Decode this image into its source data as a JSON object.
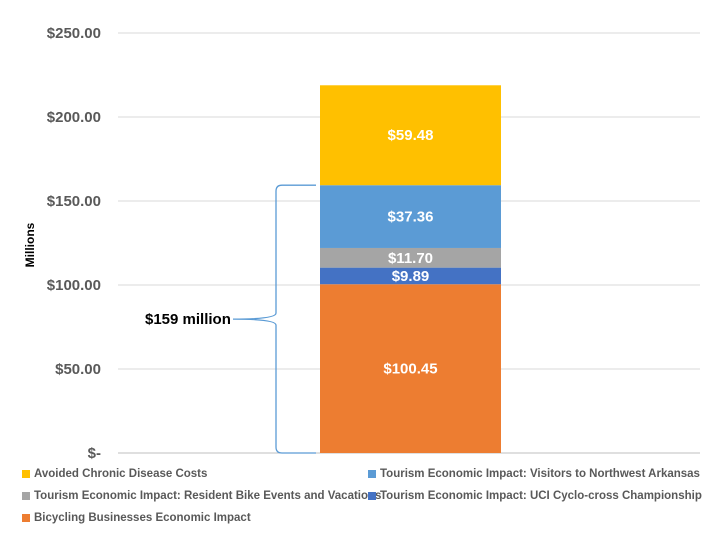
{
  "chart_data": {
    "type": "bar",
    "stacked": true,
    "title": "",
    "xlabel": "",
    "ylabel": "Millions",
    "ylim": [
      0,
      250
    ],
    "yticks": [
      0,
      50,
      100,
      150,
      200,
      250
    ],
    "ytick_labels": [
      "$-",
      "$50.00",
      "$100.00",
      "$150.00",
      "$200.00",
      "$250.00"
    ],
    "grid": true,
    "categories": [
      ""
    ],
    "series": [
      {
        "name": "Bicycling Businesses Economic Impact",
        "values": [
          100.45
        ],
        "label": "$100.45",
        "color": "#ED7D31"
      },
      {
        "name": "Tourism Economic Impact: UCI Cyclo-cross Championship",
        "values": [
          9.89
        ],
        "label": "$9.89",
        "color": "#4472C4"
      },
      {
        "name": "Tourism Economic Impact: Resident Bike Events and Vacations",
        "values": [
          11.7
        ],
        "label": "$11.70",
        "color": "#A5A5A5"
      },
      {
        "name": "Tourism Economic Impact: Visitors to Northwest Arkansas",
        "values": [
          37.36
        ],
        "label": "$37.36",
        "color": "#5B9BD5"
      },
      {
        "name": "Avoided Chronic Disease Costs",
        "values": [
          59.48
        ],
        "label": "$59.48",
        "color": "#FFC000"
      }
    ],
    "annotation": {
      "text": "$159 million",
      "from": 0,
      "to": 159.4,
      "color": "#5B9BD5"
    },
    "legend": {
      "position": "bottom",
      "order": [
        "Avoided Chronic Disease Costs",
        "Tourism Economic Impact: Visitors to Northwest Arkansas",
        "Tourism Economic Impact: Resident Bike Events and Vacations",
        "Tourism Economic Impact: UCI Cyclo-cross Championship",
        "Bicycling Businesses Economic Impact"
      ]
    }
  }
}
